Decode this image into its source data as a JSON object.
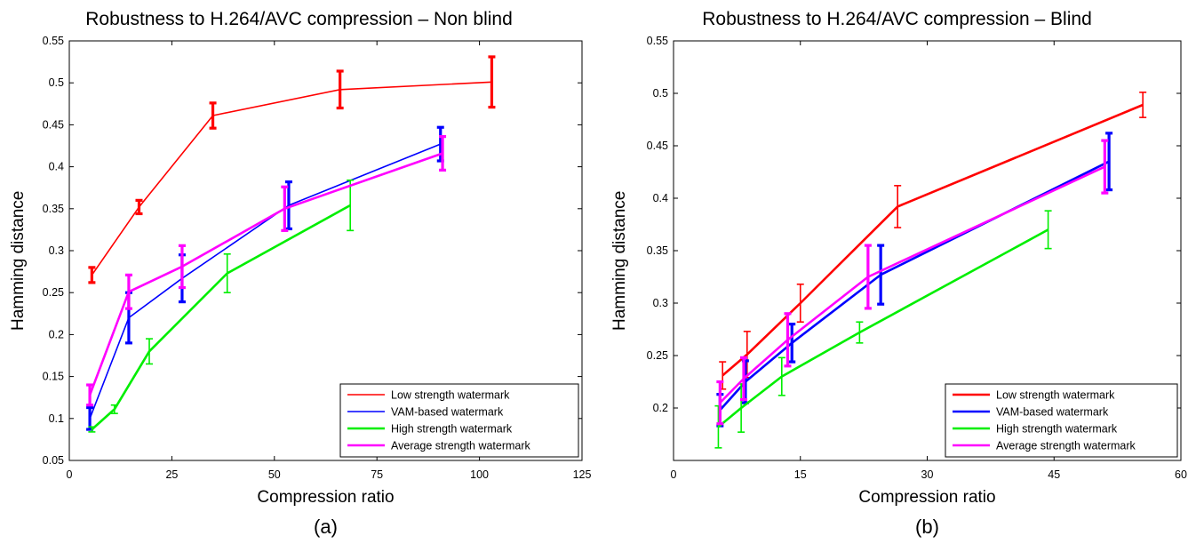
{
  "chart_data": [
    {
      "type": "line",
      "title": "Robustness to H.264/AVC compression – Non blind",
      "xlabel": "Compression ratio",
      "ylabel": "Hamming distance",
      "caption": "(a)",
      "xlim": [
        0,
        125
      ],
      "ylim": [
        0.05,
        0.55
      ],
      "xticks": [
        0,
        25,
        50,
        75,
        100,
        125
      ],
      "yticks": [
        0.05,
        0.1,
        0.15,
        0.2,
        0.25,
        0.3,
        0.35,
        0.4,
        0.45,
        0.5,
        0.55
      ],
      "grid": false,
      "legend_position": "bottom-right",
      "series": [
        {
          "name": "Low strength watermark",
          "color": "#ff0000",
          "line_width": "thin",
          "bar_width": "thick",
          "x": [
            5.5,
            17,
            35,
            66,
            103
          ],
          "y": [
            0.271,
            0.352,
            0.461,
            0.492,
            0.501
          ],
          "err": [
            0.009,
            0.008,
            0.015,
            0.022,
            0.03
          ]
        },
        {
          "name": "VAM-based watermark",
          "color": "#0000ff",
          "line_width": "thin",
          "bar_width": "thick",
          "x": [
            5,
            14.5,
            27.5,
            53.5,
            90.5
          ],
          "y": [
            0.1,
            0.22,
            0.267,
            0.354,
            0.427
          ],
          "err": [
            0.013,
            0.03,
            0.028,
            0.028,
            0.02
          ]
        },
        {
          "name": "High strength watermark",
          "color": "#00ee00",
          "line_width": "thick",
          "bar_width": "thin",
          "x": [
            5.5,
            11,
            19.5,
            38.5,
            68.5
          ],
          "y": [
            0.087,
            0.111,
            0.18,
            0.273,
            0.354
          ],
          "err": [
            0.003,
            0.005,
            0.015,
            0.023,
            0.03
          ]
        },
        {
          "name": "Average strength watermark",
          "color": "#ff00ff",
          "line_width": "thick",
          "bar_width": "thick",
          "x": [
            5,
            14.5,
            27.5,
            52.5,
            91
          ],
          "y": [
            0.128,
            0.251,
            0.281,
            0.35,
            0.416
          ],
          "err": [
            0.012,
            0.02,
            0.025,
            0.026,
            0.02
          ]
        }
      ]
    },
    {
      "type": "line",
      "title": "Robustness to H.264/AVC compression – Blind",
      "xlabel": "Compression ratio",
      "ylabel": "Hamming distance",
      "caption": "(b)",
      "xlim": [
        0,
        60
      ],
      "ylim": [
        0.15,
        0.55
      ],
      "xticks": [
        0,
        15,
        30,
        45,
        60
      ],
      "yticks": [
        0.2,
        0.25,
        0.3,
        0.35,
        0.4,
        0.45,
        0.5,
        0.55
      ],
      "grid": false,
      "legend_position": "bottom-right",
      "series": [
        {
          "name": "Low strength watermark",
          "color": "#ff0000",
          "line_width": "thick",
          "bar_width": "thin",
          "x": [
            5.8,
            8.7,
            15,
            26.5,
            55.5
          ],
          "y": [
            0.231,
            0.251,
            0.3,
            0.392,
            0.489
          ],
          "err": [
            0.013,
            0.022,
            0.018,
            0.02,
            0.012
          ]
        },
        {
          "name": "VAM-based watermark",
          "color": "#0000ff",
          "line_width": "thick",
          "bar_width": "thick",
          "x": [
            5.5,
            8.5,
            14,
            24.5,
            51.5
          ],
          "y": [
            0.198,
            0.225,
            0.262,
            0.327,
            0.435
          ],
          "err": [
            0.015,
            0.02,
            0.018,
            0.028,
            0.027
          ]
        },
        {
          "name": "High strength watermark",
          "color": "#00ee00",
          "line_width": "thick",
          "bar_width": "thin",
          "x": [
            5.3,
            8,
            12.8,
            22,
            44.3
          ],
          "y": [
            0.182,
            0.2,
            0.23,
            0.272,
            0.37
          ],
          "err": [
            0.02,
            0.023,
            0.018,
            0.01,
            0.018
          ]
        },
        {
          "name": "Average strength watermark",
          "color": "#ff00ff",
          "line_width": "thick",
          "bar_width": "thick",
          "x": [
            5.5,
            8.3,
            13.5,
            23,
            51
          ],
          "y": [
            0.205,
            0.228,
            0.265,
            0.325,
            0.43
          ],
          "err": [
            0.02,
            0.02,
            0.025,
            0.03,
            0.025
          ]
        }
      ]
    }
  ]
}
